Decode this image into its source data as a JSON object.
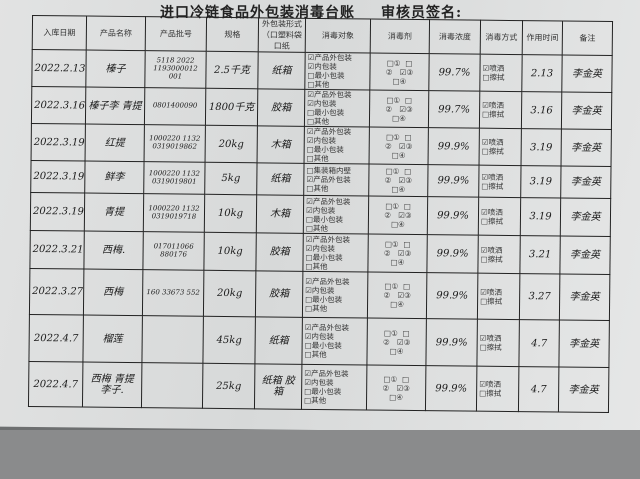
{
  "title": "进口冷链食品外包装消毒台账",
  "reviewer_label": "审核员签名:",
  "headers": [
    "入库日期",
    "产品名称",
    "产品批号",
    "规格",
    "外包装形式（口塑料袋口纸",
    "消毒对象",
    "消毒剂",
    "消毒浓度",
    "消毒方式",
    "作用时间",
    "备注"
  ],
  "check_box": "☑",
  "empty_box": "□",
  "methods": [
    "喷洒",
    "擦拭"
  ],
  "disinfectants": [
    "①",
    "②",
    "③",
    "④"
  ],
  "rows": [
    {
      "date": "2022.2.13",
      "name": "榛子",
      "batch": "5118 2022 1193000012 001",
      "spec": "2.5千克",
      "pack": "纸箱",
      "targets": [
        [
          "产品外包装",
          true
        ],
        [
          "内包装",
          true
        ],
        [
          "最小包装",
          false
        ],
        [
          "其他",
          false
        ]
      ],
      "agent": 2,
      "conc": "99.7%",
      "method": 0,
      "time": "2.13",
      "note": "李金英"
    },
    {
      "date": "2022.3.16",
      "name": "榛子李 青提",
      "batch": "0801400090",
      "spec": "1800千克",
      "pack": "胶箱",
      "targets": [
        [
          "产品外包装",
          true
        ],
        [
          "内包装",
          true
        ],
        [
          "最小包装",
          false
        ],
        [
          "其他",
          false
        ]
      ],
      "agent": 2,
      "conc": "99.7%",
      "method": 0,
      "time": "3.16",
      "note": "李金英"
    },
    {
      "date": "2022.3.19",
      "name": "红提",
      "batch": "1000220 1132 0319019862",
      "spec": "20kg",
      "pack": "木箱",
      "targets": [
        [
          "产品外包装",
          true
        ],
        [
          "内包装",
          true
        ],
        [
          "最小包装",
          false
        ],
        [
          "其他",
          false
        ]
      ],
      "agent": 2,
      "conc": "99.9%",
      "method": 0,
      "time": "3.19",
      "note": "李金英"
    },
    {
      "date": "2022.3.19",
      "name": "鲜李",
      "batch": "1000220 1132 0319019801",
      "spec": "5kg",
      "pack": "纸箱",
      "targets": [
        [
          "集装箱内壁",
          false
        ],
        [
          "产品外包装",
          true
        ],
        [
          "其他",
          false
        ]
      ],
      "agent": 2,
      "conc": "99.9%",
      "method": 0,
      "time": "3.19",
      "note": "李金英"
    },
    {
      "date": "2022.3.19",
      "name": "青提",
      "batch": "1000220 1132 0319019718",
      "spec": "10kg",
      "pack": "木箱",
      "targets": [
        [
          "产品外包装",
          true
        ],
        [
          "内包装",
          true
        ],
        [
          "最小包装",
          false
        ],
        [
          "其他",
          false
        ]
      ],
      "agent": 2,
      "conc": "99.9%",
      "method": 0,
      "time": "3.19",
      "note": "李金英"
    },
    {
      "date": "2022.3.21",
      "name": "西梅.",
      "batch": "017011066 880176",
      "spec": "10kg",
      "pack": "胶箱",
      "targets": [
        [
          "产品外包装",
          true
        ],
        [
          "内包装",
          true
        ],
        [
          "最小包装",
          false
        ],
        [
          "其他",
          false
        ]
      ],
      "agent": 2,
      "conc": "99.9%",
      "method": 0,
      "time": "3.21",
      "note": "李金英"
    },
    {
      "date": "2022.3.27",
      "name": "西梅",
      "batch": "160 33673 552",
      "spec": "20kg",
      "pack": "胶箱",
      "targets": [
        [
          "产品外包装",
          true
        ],
        [
          "内包装",
          true
        ],
        [
          "最小包装",
          false
        ],
        [
          "其他",
          false
        ]
      ],
      "agent": 2,
      "conc": "99.9%",
      "method": 0,
      "time": "3.27",
      "note": "李金英"
    },
    {
      "date": "2022.4.7",
      "name": "榴莲",
      "batch": "",
      "spec": "45kg",
      "pack": "纸箱",
      "targets": [
        [
          "产品外包装",
          true
        ],
        [
          "内包装",
          true
        ],
        [
          "最小包装",
          false
        ],
        [
          "其他",
          false
        ]
      ],
      "agent": 2,
      "conc": "99.9%",
      "method": 0,
      "time": "4.7",
      "note": "李金英"
    },
    {
      "date": "2022.4.7",
      "name": "西梅 青提 李子.",
      "batch": "",
      "spec": "25kg",
      "pack": "纸箱 胶箱",
      "targets": [
        [
          "产品外包装",
          true
        ],
        [
          "内包装",
          true
        ],
        [
          "最小包装",
          false
        ],
        [
          "其他",
          false
        ]
      ],
      "agent": 2,
      "conc": "99.9%",
      "method": 0,
      "time": "4.7",
      "note": "李金英"
    }
  ]
}
